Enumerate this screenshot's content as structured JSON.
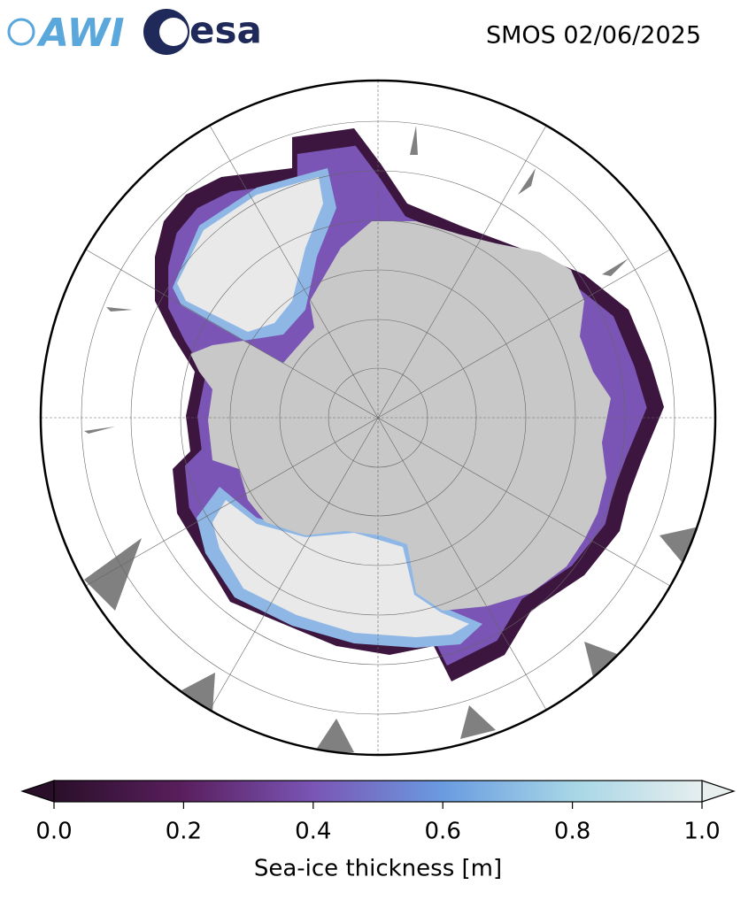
{
  "header": {
    "logo_left": "AWI",
    "logo_right": "esa",
    "title": "SMOS 02/06/2025"
  },
  "colorbar": {
    "label": "Sea-ice thickness [m]",
    "lim": [
      0,
      1
    ],
    "ticks": [
      {
        "value": 0,
        "label": "0.0"
      },
      {
        "value": 0.2,
        "label": "0.2"
      },
      {
        "value": 0.4,
        "label": "0.4"
      },
      {
        "value": 0.6,
        "label": "0.6"
      },
      {
        "value": 0.8,
        "label": "0.8"
      },
      {
        "value": 1,
        "label": "1.0"
      }
    ],
    "colors": [
      "#2a0f2a",
      "#5a1f5e",
      "#7a55b5",
      "#6a9be0",
      "#a6d6e6",
      "#e6eeee"
    ]
  }
}
